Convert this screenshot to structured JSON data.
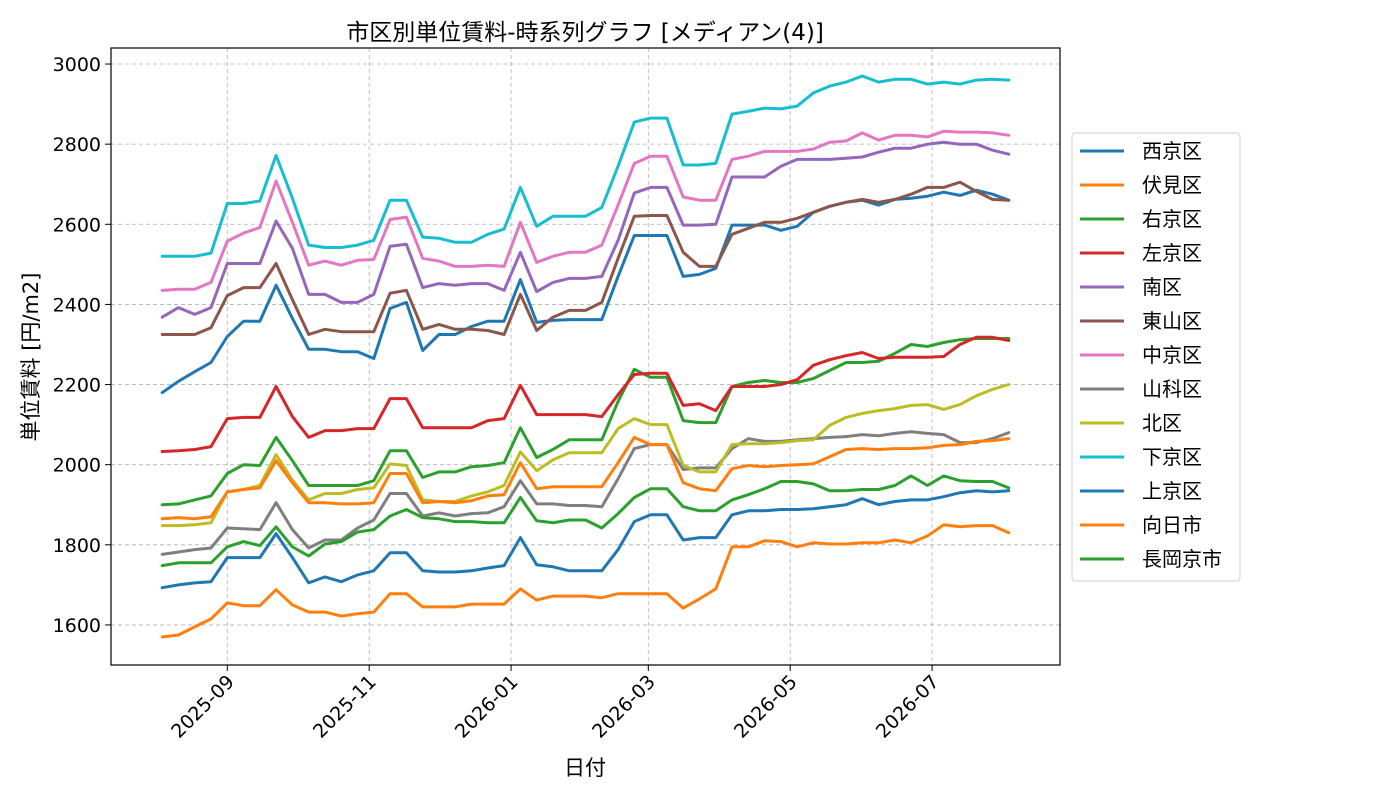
{
  "chart_data": {
    "type": "line",
    "title": "市区別単位賃料-時系列グラフ [メディアン(4)]",
    "xlabel": "日付",
    "ylabel": "単位賃料 [円/m2]",
    "ylim": [
      1500,
      3040
    ],
    "xlim": [
      "2025-07-13",
      "2026-08-25"
    ],
    "yticks": [
      1600,
      1800,
      2000,
      2200,
      2400,
      2600,
      2800,
      3000
    ],
    "xticks": [
      "2025-09-01",
      "2025-11-01",
      "2026-01-01",
      "2026-03-01",
      "2026-05-01",
      "2026-07-01"
    ],
    "xtick_labels": [
      "2025-09",
      "2025-11",
      "2026-01",
      "2026-03",
      "2026-05",
      "2026-07"
    ],
    "grid": true,
    "legend_position": "right",
    "x": [
      "2025-08-04",
      "2025-08-11",
      "2025-08-18",
      "2025-08-25",
      "2025-09-01",
      "2025-09-08",
      "2025-09-15",
      "2025-09-22",
      "2025-09-29",
      "2025-10-06",
      "2025-10-13",
      "2025-10-20",
      "2025-10-27",
      "2025-11-03",
      "2025-11-10",
      "2025-11-17",
      "2025-11-24",
      "2025-12-01",
      "2025-12-08",
      "2025-12-15",
      "2025-12-22",
      "2025-12-29",
      "2026-01-05",
      "2026-01-12",
      "2026-01-19",
      "2026-01-26",
      "2026-02-02",
      "2026-02-09",
      "2026-02-16",
      "2026-02-23",
      "2026-03-02",
      "2026-03-09",
      "2026-03-16",
      "2026-03-23",
      "2026-03-30",
      "2026-04-06",
      "2026-04-13",
      "2026-04-20",
      "2026-04-27",
      "2026-05-04",
      "2026-05-11",
      "2026-05-18",
      "2026-05-25",
      "2026-06-01",
      "2026-06-08",
      "2026-06-15",
      "2026-06-22",
      "2026-06-29",
      "2026-07-06",
      "2026-07-13",
      "2026-07-20",
      "2026-07-27",
      "2026-08-03"
    ],
    "series": [
      {
        "name": "西京区",
        "color": "#1f77b4",
        "values": [
          2180,
          2208,
          2232,
          2255,
          2320,
          2358,
          2358,
          2448,
          2365,
          2288,
          2288,
          2282,
          2282,
          2265,
          2390,
          2405,
          2285,
          2325,
          2325,
          2345,
          2358,
          2358,
          2462,
          2355,
          2360,
          2362,
          2362,
          2362,
          2470,
          2572,
          2572,
          2572,
          2470,
          2475,
          2490,
          2598,
          2598,
          2598,
          2585,
          2595,
          2630,
          2645,
          2655,
          2660,
          2648,
          2662,
          2665,
          2670,
          2680,
          2672,
          2685,
          2675,
          2660
        ]
      },
      {
        "name": "伏見区",
        "color": "#ff7f0e",
        "values": [
          1570,
          1575,
          1595,
          1615,
          1655,
          1648,
          1648,
          1688,
          1650,
          1632,
          1632,
          1622,
          1628,
          1632,
          1678,
          1678,
          1645,
          1645,
          1645,
          1652,
          1652,
          1652,
          1690,
          1662,
          1672,
          1672,
          1672,
          1668,
          1678,
          1678,
          1678,
          1678,
          1642,
          1665,
          1690,
          1795,
          1795,
          1810,
          1808,
          1795,
          1805,
          1802,
          1802,
          1805,
          1805,
          1812,
          1805,
          1822,
          1850,
          1845,
          1848,
          1848,
          1830
        ]
      },
      {
        "name": "右京区",
        "color": "#2ca02c",
        "values": [
          1900,
          1902,
          1912,
          1922,
          1978,
          2000,
          1998,
          2068,
          2010,
          1948,
          1948,
          1948,
          1948,
          1960,
          2035,
          2035,
          1968,
          1982,
          1982,
          1995,
          1998,
          2005,
          2092,
          2018,
          2038,
          2062,
          2062,
          2062,
          2158,
          2238,
          2218,
          2218,
          2110,
          2105,
          2105,
          2195,
          2205,
          2210,
          2205,
          2205,
          2215,
          2235,
          2255,
          2255,
          2258,
          2278,
          2300,
          2295,
          2305,
          2312,
          2315,
          2315,
          2315
        ]
      },
      {
        "name": "左京区",
        "color": "#d62728",
        "values": [
          2033,
          2035,
          2038,
          2045,
          2115,
          2118,
          2118,
          2195,
          2120,
          2068,
          2085,
          2085,
          2090,
          2090,
          2165,
          2165,
          2092,
          2092,
          2092,
          2092,
          2110,
          2115,
          2198,
          2125,
          2125,
          2125,
          2125,
          2120,
          2175,
          2225,
          2228,
          2228,
          2148,
          2152,
          2135,
          2195,
          2195,
          2195,
          2200,
          2212,
          2248,
          2262,
          2272,
          2280,
          2265,
          2268,
          2268,
          2268,
          2270,
          2300,
          2318,
          2318,
          2310
        ]
      },
      {
        "name": "南区",
        "color": "#9467bd",
        "values": [
          2368,
          2392,
          2375,
          2392,
          2502,
          2502,
          2502,
          2608,
          2540,
          2425,
          2425,
          2405,
          2405,
          2425,
          2545,
          2550,
          2442,
          2452,
          2448,
          2452,
          2452,
          2435,
          2530,
          2432,
          2455,
          2465,
          2465,
          2470,
          2560,
          2678,
          2692,
          2692,
          2598,
          2598,
          2600,
          2718,
          2718,
          2718,
          2745,
          2762,
          2762,
          2762,
          2765,
          2768,
          2780,
          2790,
          2790,
          2800,
          2805,
          2800,
          2800,
          2785,
          2775
        ]
      },
      {
        "name": "東山区",
        "color": "#8c564b",
        "values": [
          2325,
          2325,
          2325,
          2342,
          2422,
          2442,
          2442,
          2502,
          2412,
          2325,
          2338,
          2332,
          2332,
          2332,
          2428,
          2435,
          2338,
          2350,
          2338,
          2338,
          2335,
          2325,
          2425,
          2335,
          2368,
          2385,
          2385,
          2405,
          2515,
          2620,
          2622,
          2622,
          2530,
          2495,
          2495,
          2575,
          2590,
          2605,
          2605,
          2615,
          2630,
          2645,
          2655,
          2662,
          2655,
          2662,
          2675,
          2692,
          2692,
          2705,
          2682,
          2662,
          2660
        ]
      },
      {
        "name": "中京区",
        "color": "#e377c2",
        "values": [
          2435,
          2438,
          2438,
          2455,
          2558,
          2578,
          2592,
          2708,
          2605,
          2498,
          2508,
          2498,
          2510,
          2512,
          2612,
          2618,
          2515,
          2508,
          2495,
          2495,
          2498,
          2495,
          2605,
          2505,
          2520,
          2530,
          2530,
          2548,
          2648,
          2752,
          2770,
          2770,
          2668,
          2660,
          2660,
          2762,
          2770,
          2782,
          2782,
          2782,
          2788,
          2805,
          2808,
          2828,
          2810,
          2822,
          2822,
          2818,
          2832,
          2830,
          2830,
          2828,
          2822
        ]
      },
      {
        "name": "山科区",
        "color": "#7f7f7f",
        "values": [
          1776,
          1782,
          1788,
          1792,
          1842,
          1840,
          1838,
          1905,
          1838,
          1792,
          1812,
          1812,
          1842,
          1862,
          1928,
          1928,
          1872,
          1880,
          1872,
          1878,
          1880,
          1895,
          1960,
          1902,
          1902,
          1898,
          1898,
          1895,
          1965,
          2040,
          2050,
          2050,
          1988,
          1992,
          1992,
          2040,
          2065,
          2058,
          2058,
          2062,
          2065,
          2068,
          2070,
          2075,
          2072,
          2078,
          2082,
          2078,
          2075,
          2055,
          2055,
          2065,
          2080
        ]
      },
      {
        "name": "北区",
        "color": "#bcbd22",
        "values": [
          1848,
          1848,
          1850,
          1855,
          1932,
          1938,
          1948,
          2025,
          1962,
          1912,
          1928,
          1928,
          1938,
          1942,
          2002,
          1998,
          1912,
          1908,
          1908,
          1922,
          1932,
          1948,
          2032,
          1985,
          2012,
          2030,
          2030,
          2030,
          2090,
          2115,
          2100,
          2100,
          1998,
          1982,
          1982,
          2050,
          2052,
          2052,
          2055,
          2060,
          2062,
          2098,
          2118,
          2128,
          2135,
          2140,
          2148,
          2150,
          2138,
          2150,
          2172,
          2188,
          2200
        ]
      },
      {
        "name": "下京区",
        "color": "#17becf",
        "values": [
          2520,
          2520,
          2520,
          2528,
          2652,
          2652,
          2658,
          2772,
          2665,
          2548,
          2542,
          2542,
          2548,
          2560,
          2660,
          2660,
          2568,
          2565,
          2555,
          2555,
          2575,
          2588,
          2692,
          2595,
          2620,
          2620,
          2620,
          2642,
          2745,
          2855,
          2865,
          2865,
          2748,
          2748,
          2752,
          2875,
          2882,
          2890,
          2888,
          2895,
          2928,
          2945,
          2955,
          2970,
          2955,
          2962,
          2962,
          2950,
          2955,
          2950,
          2960,
          2962,
          2960
        ]
      },
      {
        "name": "上京区",
        "color": "#1f77b4",
        "values": [
          1693,
          1700,
          1705,
          1708,
          1768,
          1768,
          1768,
          1828,
          1768,
          1705,
          1720,
          1708,
          1725,
          1735,
          1780,
          1780,
          1735,
          1732,
          1732,
          1735,
          1742,
          1748,
          1818,
          1750,
          1745,
          1735,
          1735,
          1735,
          1788,
          1858,
          1875,
          1875,
          1812,
          1818,
          1818,
          1875,
          1885,
          1885,
          1888,
          1888,
          1890,
          1895,
          1900,
          1915,
          1900,
          1908,
          1912,
          1912,
          1920,
          1930,
          1935,
          1932,
          1935
        ]
      },
      {
        "name": "向日市",
        "color": "#ff7f0e",
        "values": [
          1865,
          1868,
          1865,
          1870,
          1932,
          1938,
          1942,
          2010,
          1955,
          1905,
          1905,
          1902,
          1902,
          1905,
          1978,
          1978,
          1905,
          1908,
          1905,
          1910,
          1922,
          1925,
          2005,
          1940,
          1945,
          1945,
          1945,
          1945,
          2005,
          2068,
          2050,
          2050,
          1955,
          1940,
          1935,
          1990,
          1998,
          1995,
          1998,
          2000,
          2002,
          2020,
          2038,
          2040,
          2038,
          2040,
          2040,
          2042,
          2048,
          2050,
          2058,
          2060,
          2065
        ]
      },
      {
        "name": "長岡京市",
        "color": "#2ca02c",
        "values": [
          1748,
          1755,
          1755,
          1755,
          1795,
          1808,
          1798,
          1845,
          1795,
          1772,
          1802,
          1808,
          1832,
          1838,
          1872,
          1888,
          1868,
          1865,
          1858,
          1858,
          1855,
          1855,
          1918,
          1860,
          1855,
          1862,
          1862,
          1842,
          1878,
          1918,
          1940,
          1940,
          1895,
          1885,
          1885,
          1912,
          1925,
          1940,
          1958,
          1958,
          1952,
          1935,
          1935,
          1938,
          1938,
          1948,
          1972,
          1948,
          1972,
          1960,
          1958,
          1958,
          1942
        ]
      }
    ]
  }
}
